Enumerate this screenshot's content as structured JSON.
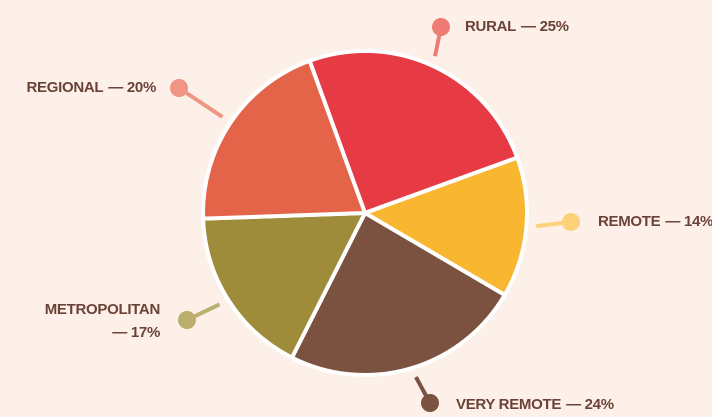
{
  "chart_data": {
    "type": "pie",
    "categories": [
      "RURAL",
      "REMOTE",
      "VERY REMOTE",
      "METROPOLITAN",
      "REGIONAL"
    ],
    "values": [
      25,
      14,
      24,
      17,
      20
    ],
    "value_labels": [
      "— 25%",
      "— 14%",
      "— 24%",
      "— 17%",
      "— 20%"
    ],
    "colors": [
      "#e63a45",
      "#f9b731",
      "#7b5140",
      "#9e8c3a",
      "#e4644a"
    ],
    "marker_colors": [
      "#ef7b74",
      "#fbd27a",
      "#7b5140",
      "#bcae6e",
      "#ef9583"
    ]
  }
}
